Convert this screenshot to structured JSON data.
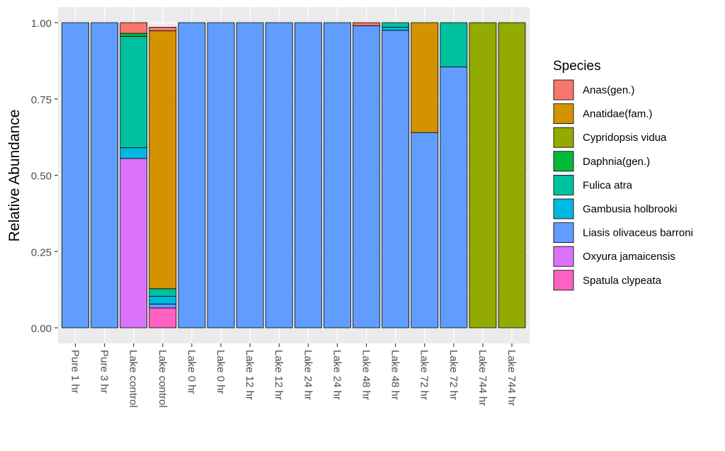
{
  "chart_data": {
    "type": "bar",
    "stacked": true,
    "ylabel": "Relative Abundance",
    "ylim": [
      0,
      1
    ],
    "yticks": [
      "0.00",
      "0.25",
      "0.50",
      "0.75",
      "1.00"
    ],
    "grid": true,
    "legend_position": "right",
    "legend_title": "Species",
    "categories": [
      "Pure 1 hr",
      "Pure 3 hr",
      "Lake control",
      "Lake control",
      "Lake 0 hr",
      "Lake 0 hr",
      "Lake 12 hr",
      "Lake 12 hr",
      "Lake 24 hr",
      "Lake 24 hr",
      "Lake 48 hr",
      "Lake 48 hr",
      "Lake 72 hr",
      "Lake 72 hr",
      "Lake 744 hr",
      "Lake 744 hr"
    ],
    "series": [
      {
        "name": "Anas(gen.)",
        "color": "#F8766D",
        "values": [
          0,
          0,
          0.035,
          0.012,
          0,
          0,
          0,
          0,
          0,
          0,
          0.01,
          0,
          0,
          0,
          0,
          0
        ]
      },
      {
        "name": "Anatidae(fam.)",
        "color": "#D39200",
        "values": [
          0,
          0,
          0,
          0.845,
          0,
          0,
          0,
          0,
          0,
          0,
          0,
          0,
          0.36,
          0,
          0,
          0
        ]
      },
      {
        "name": "Cypridopsis vidua",
        "color": "#93AA00",
        "values": [
          0,
          0,
          0,
          0,
          0,
          0,
          0,
          0,
          0,
          0,
          0,
          0,
          0,
          0,
          1.0,
          1.0
        ]
      },
      {
        "name": "Daphnia(gen.)",
        "color": "#00BA38",
        "values": [
          0,
          0,
          0.01,
          0,
          0,
          0,
          0,
          0,
          0,
          0,
          0,
          0,
          0,
          0,
          0,
          0
        ]
      },
      {
        "name": "Fulica atra",
        "color": "#00C19F",
        "values": [
          0,
          0,
          0.365,
          0.025,
          0,
          0,
          0,
          0,
          0,
          0,
          0,
          0.015,
          0,
          0.145,
          0,
          0
        ]
      },
      {
        "name": "Gambusia holbrooki",
        "color": "#00B9E3",
        "values": [
          0,
          0,
          0.035,
          0.025,
          0,
          0,
          0,
          0,
          0,
          0,
          0,
          0.01,
          0,
          0,
          0,
          0
        ]
      },
      {
        "name": "Liasis olivaceus barroni",
        "color": "#619CFF",
        "values": [
          1.0,
          1.0,
          0,
          0.013,
          1.0,
          1.0,
          1.0,
          1.0,
          1.0,
          1.0,
          0.99,
          0.975,
          0.64,
          0.855,
          0,
          0
        ]
      },
      {
        "name": "Oxyura jamaicensis",
        "color": "#DB72FB",
        "values": [
          0,
          0,
          0.555,
          0,
          0,
          0,
          0,
          0,
          0,
          0,
          0,
          0,
          0,
          0,
          0,
          0
        ]
      },
      {
        "name": "Spatula clypeata",
        "color": "#FF61C3",
        "values": [
          0,
          0,
          0,
          0.065,
          0,
          0,
          0,
          0,
          0,
          0,
          0,
          0,
          0,
          0,
          0,
          0
        ]
      }
    ]
  }
}
